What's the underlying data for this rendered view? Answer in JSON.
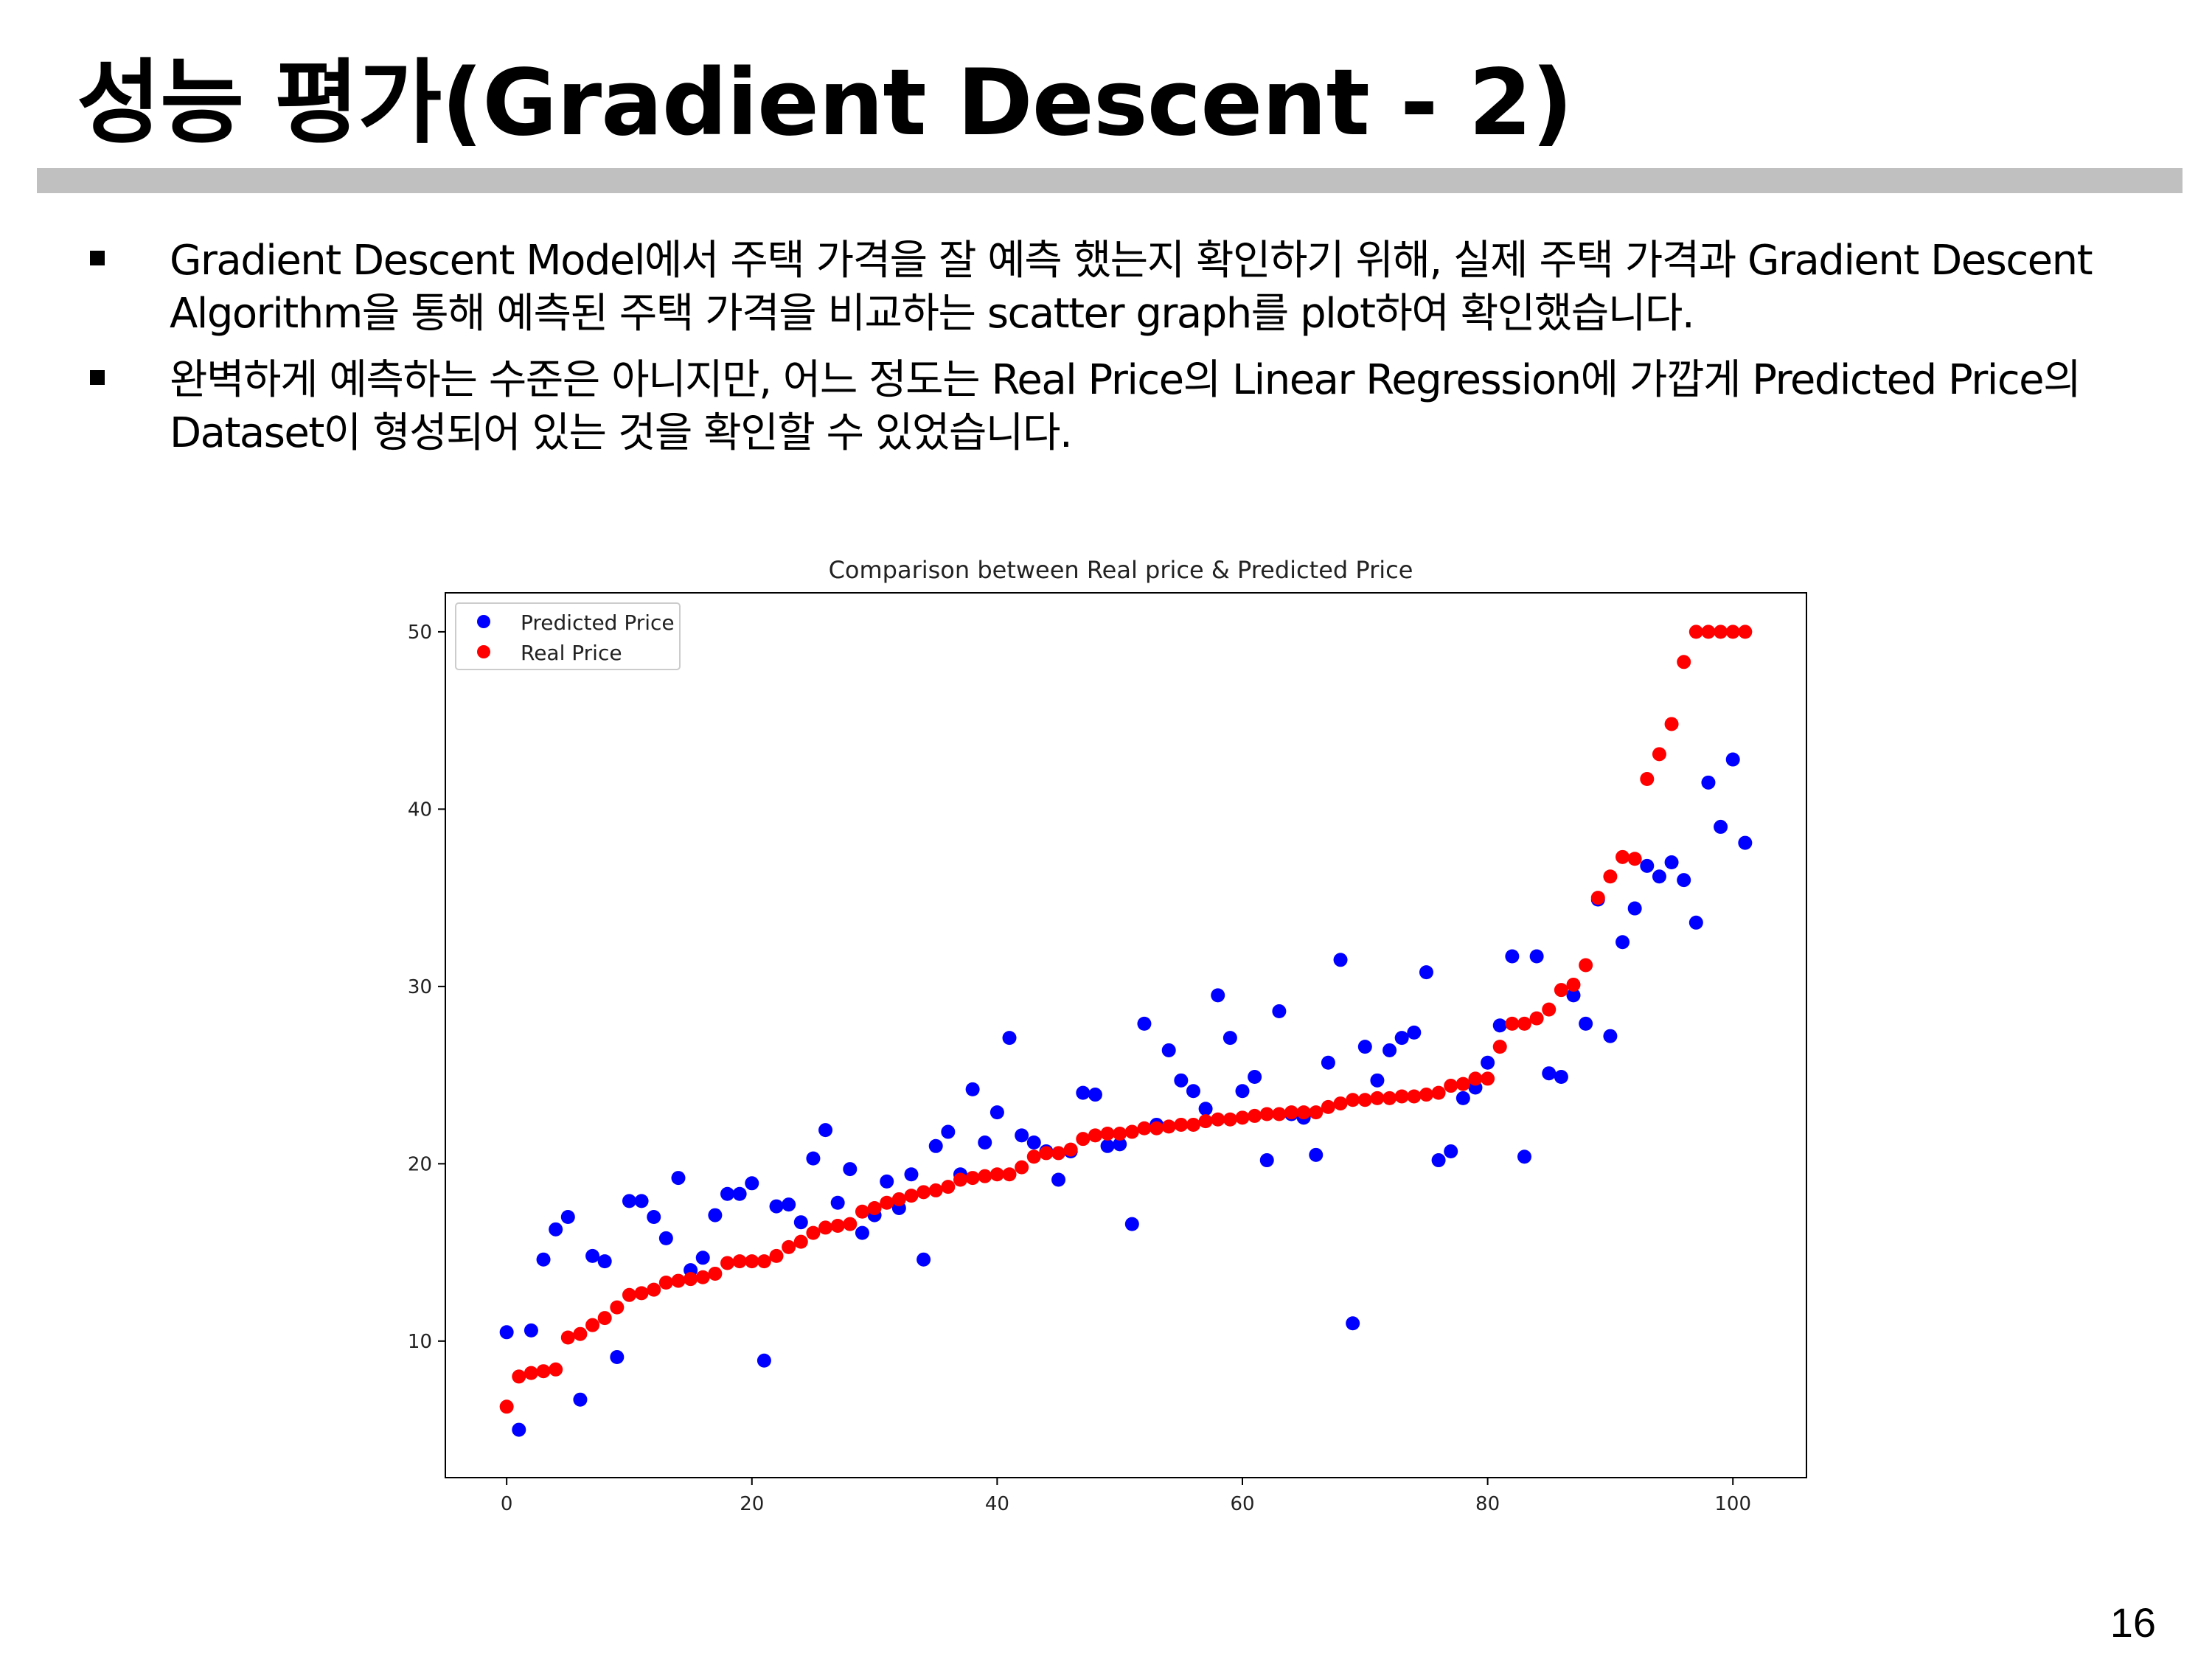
{
  "slide": {
    "title": "성능 평가(Gradient Descent - 2)",
    "bullets": [
      "Gradient Descent Model에서 주택 가격을 잘 예측 했는지 확인하기 위해, 실제 주택 가격과 Gradient Descent Algorithm을 통해 예측된 주택 가격을 비교하는 scatter graph를 plot하여 확인했습니다.",
      "완벽하게 예측하는 수준은 아니지만, 어느 정도는 Real Price의 Linear Regression에 가깝게 Predicted Price의 Dataset이 형성되어 있는 것을 확인할 수 있었습니다."
    ],
    "page_number": "16"
  },
  "chart_data": {
    "type": "scatter",
    "title": "Comparison between Real price & Predicted Price",
    "xlabel": "",
    "ylabel": "",
    "xlim": [
      -5,
      106
    ],
    "ylim": [
      2.3,
      52.2
    ],
    "x_ticks": [
      0,
      20,
      40,
      60,
      80,
      100
    ],
    "y_ticks": [
      10,
      20,
      30,
      40,
      50
    ],
    "grid": false,
    "legend": "top-left",
    "series": [
      {
        "name": "Predicted Price",
        "color": "#0000ff",
        "values": [
          10.5,
          5.0,
          10.6,
          14.6,
          16.3,
          17.0,
          6.7,
          14.8,
          14.5,
          9.1,
          17.9,
          17.9,
          17.0,
          15.8,
          19.2,
          14.0,
          14.7,
          17.1,
          18.3,
          18.3,
          18.9,
          8.9,
          17.6,
          17.7,
          16.7,
          20.3,
          21.9,
          17.8,
          19.7,
          16.1,
          17.1,
          19.0,
          17.5,
          19.4,
          14.6,
          21.0,
          21.8,
          19.4,
          24.2,
          21.2,
          22.9,
          27.1,
          21.6,
          21.2,
          20.7,
          19.1,
          20.7,
          24.0,
          23.9,
          21.0,
          21.1,
          16.6,
          27.9,
          22.2,
          26.4,
          24.7,
          24.1,
          23.1,
          29.5,
          27.1,
          24.1,
          24.9,
          20.2,
          28.6,
          22.8,
          22.6,
          20.5,
          25.7,
          31.5,
          11.0,
          26.6,
          24.7,
          26.4,
          27.1,
          27.4,
          30.8,
          20.2,
          20.7,
          23.7,
          24.3,
          25.7,
          27.8,
          31.7,
          20.4,
          31.7,
          25.1,
          24.9,
          29.5,
          27.9,
          34.9,
          27.2,
          32.5,
          34.4,
          36.8,
          36.2,
          37.0,
          36.0,
          33.6,
          41.5,
          39.0,
          42.8,
          38.1
        ]
      },
      {
        "name": "Real Price",
        "color": "#ff0000",
        "values": [
          6.3,
          8.0,
          8.2,
          8.3,
          8.4,
          10.2,
          10.4,
          10.9,
          11.3,
          11.9,
          12.6,
          12.7,
          12.9,
          13.3,
          13.4,
          13.5,
          13.6,
          13.8,
          14.4,
          14.5,
          14.5,
          14.5,
          14.8,
          15.3,
          15.6,
          16.1,
          16.4,
          16.5,
          16.6,
          17.3,
          17.5,
          17.8,
          18.0,
          18.2,
          18.4,
          18.5,
          18.7,
          19.1,
          19.2,
          19.3,
          19.4,
          19.4,
          19.8,
          20.4,
          20.6,
          20.6,
          20.8,
          21.4,
          21.6,
          21.7,
          21.7,
          21.8,
          22.0,
          22.0,
          22.1,
          22.2,
          22.2,
          22.4,
          22.5,
          22.5,
          22.6,
          22.7,
          22.8,
          22.8,
          22.9,
          22.9,
          22.9,
          23.2,
          23.4,
          23.6,
          23.6,
          23.7,
          23.7,
          23.8,
          23.8,
          23.9,
          24.0,
          24.4,
          24.5,
          24.8,
          24.8,
          26.6,
          27.9,
          27.9,
          28.2,
          28.7,
          29.8,
          30.1,
          31.2,
          35.0,
          36.2,
          37.3,
          37.2,
          41.7,
          43.1,
          44.8,
          48.3,
          50.0,
          50.0,
          50.0,
          50.0,
          50.0
        ]
      }
    ]
  }
}
